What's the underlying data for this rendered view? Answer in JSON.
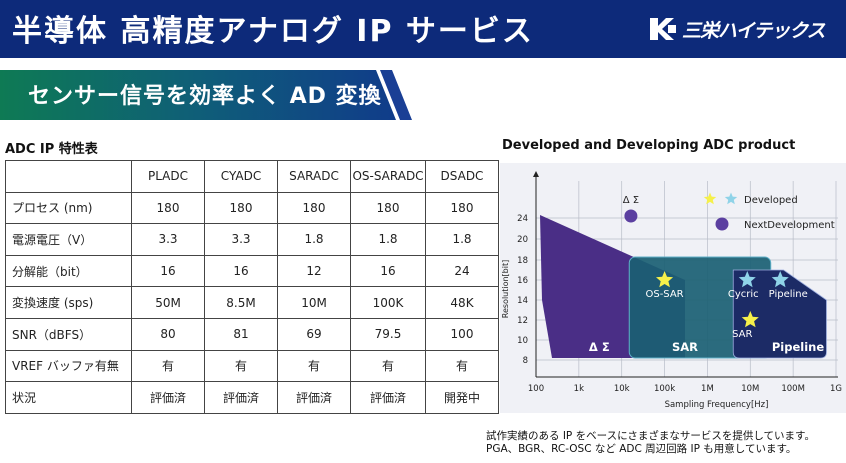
{
  "header": {
    "title": "半導体 高精度アナログ IP サービス",
    "logo_text": "三栄ハイテックス",
    "bg_color": "#0d2a7a"
  },
  "banner": {
    "text": "センサー信号を効率よく AD 変換"
  },
  "table_section": {
    "title": "ADC IP 特性表",
    "columns": [
      "",
      "PLADC",
      "CYADC",
      "SARADC",
      "OS-SARADC",
      "DSADC"
    ],
    "rows": [
      {
        "label": "プロセス (nm)",
        "values": [
          "180",
          "180",
          "180",
          "180",
          "180"
        ]
      },
      {
        "label": "電源電圧（V）",
        "values": [
          "3.3",
          "3.3",
          "1.8",
          "1.8",
          "1.8"
        ]
      },
      {
        "label": "分解能（bit）",
        "values": [
          "16",
          "16",
          "12",
          "16",
          "24"
        ]
      },
      {
        "label": "変換速度 (sps)",
        "values": [
          "50M",
          "8.5M",
          "10M",
          "100K",
          "48K"
        ]
      },
      {
        "label": "SNR（dBFS）",
        "values": [
          "80",
          "81",
          "69",
          "79.5",
          "100"
        ]
      },
      {
        "label": "VREF バッファ有無",
        "values": [
          "有",
          "有",
          "有",
          "有",
          "有"
        ]
      },
      {
        "label": "状況",
        "values": [
          "評価済",
          "評価済",
          "評価済",
          "評価済",
          "開発中"
        ]
      }
    ]
  },
  "chart_section": {
    "title": "Developed and Developing ADC product"
  },
  "chart_data": {
    "type": "scatter",
    "title": "Developed and Developing ADC product",
    "xlabel": "Sampling Frequency[Hz]",
    "ylabel": "Resolution[bit]",
    "x_scale": "log",
    "x_ticks": [
      "100",
      "1k",
      "10k",
      "100k",
      "1M",
      "10M",
      "100M",
      "1G"
    ],
    "x_tick_values": [
      100,
      1000,
      10000,
      100000,
      1000000,
      10000000,
      100000000,
      1000000000
    ],
    "y_ticks": [
      8,
      10,
      12,
      14,
      16,
      18,
      20,
      24
    ],
    "regions": [
      {
        "name": "Δ Σ",
        "color": "#4a2e86"
      },
      {
        "name": "SAR",
        "color": "#1a5f73"
      },
      {
        "name": "Pipeline",
        "color": "#1c2b66"
      }
    ],
    "legend": {
      "developed_label": "Developed",
      "next_label": "NextDevelopment",
      "placement": "top-right"
    },
    "developed_points": [
      {
        "name": "OS-SAR",
        "x": 100000,
        "y": 16,
        "color": "#f5f04a"
      },
      {
        "name": "Cycric",
        "x": 8500000,
        "y": 16,
        "color": "#8fd3e8"
      },
      {
        "name": "Pipeline",
        "x": 50000000,
        "y": 16,
        "color": "#8fd3e8"
      },
      {
        "name": "SAR",
        "x": 10000000,
        "y": 12,
        "color": "#f5f04a"
      }
    ],
    "next_points": [
      {
        "name": "Δ Σ",
        "x": 48000,
        "y": 24,
        "color": "#5b3fa0"
      }
    ],
    "grid": true
  },
  "footnote": {
    "line1": "試作実績のある IP をベースにさまざまなサービスを提供しています。",
    "line2": "PGA、BGR、RC-OSC など ADC 周辺回路 IP も用意しています。"
  }
}
